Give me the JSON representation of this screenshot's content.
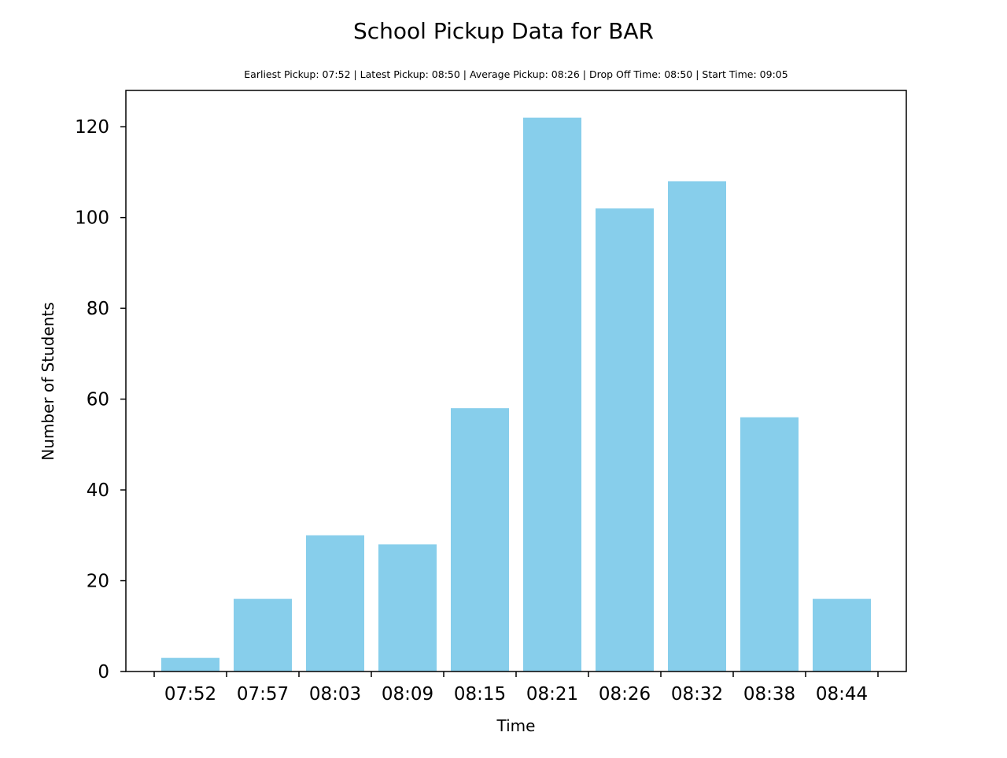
{
  "chart_data": {
    "type": "bar",
    "title": "School Pickup Data for BAR",
    "subtitle": "Earliest Pickup: 07:52 | Latest Pickup: 08:50 | Average Pickup: 08:26 | Drop Off Time: 08:50 | Start Time: 09:05",
    "xlabel": "Time",
    "ylabel": "Number of Students",
    "categories": [
      "07:52",
      "07:57",
      "08:03",
      "08:09",
      "08:15",
      "08:21",
      "08:26",
      "08:32",
      "08:38",
      "08:44"
    ],
    "values": [
      3,
      16,
      30,
      28,
      58,
      122,
      102,
      108,
      56,
      16
    ],
    "ylim": [
      0,
      128
    ],
    "yticks": [
      0,
      20,
      40,
      60,
      80,
      100,
      120
    ],
    "bar_color": "#87ceeb",
    "grid": false,
    "legend": false
  }
}
